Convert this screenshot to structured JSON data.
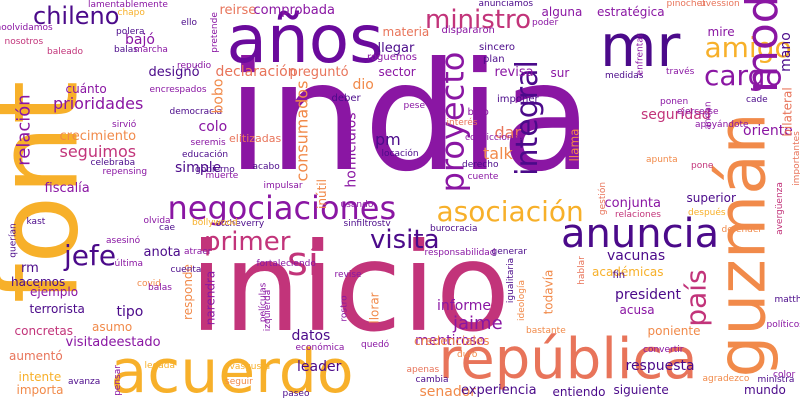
{
  "colors": {
    "background": "#ffffff",
    "purple": "#6a0a9c",
    "dark_purple": "#4b0a8a",
    "violet": "#8a16a3",
    "magenta": "#c2347a",
    "pink": "#d6507a",
    "coral": "#e8745a",
    "orange": "#f18a4a",
    "amber": "#f7b02a",
    "yellow": "#f9c52c"
  },
  "words": [
    {
      "text": "india"
    },
    {
      "text": "inicio"
    },
    {
      "text": "años"
    },
    {
      "text": "font"
    },
    {
      "text": "guzmán"
    },
    {
      "text": "acuerdo"
    },
    {
      "text": "república"
    },
    {
      "text": "mr"
    },
    {
      "text": "anuncia"
    },
    {
      "text": "negociaciones"
    },
    {
      "text": "asociación"
    },
    {
      "text": "proyecto"
    },
    {
      "text": "integral"
    },
    {
      "text": "ministro"
    },
    {
      "text": "chileno"
    },
    {
      "text": "amigo"
    },
    {
      "text": "modi"
    },
    {
      "text": "cargo"
    },
    {
      "text": "visita"
    },
    {
      "text": "primer"
    },
    {
      "text": "jefe"
    },
    {
      "text": "sí"
    },
    {
      "text": "país"
    },
    {
      "text": "relación"
    },
    {
      "text": "prioridades"
    },
    {
      "text": "seguimos"
    },
    {
      "text": "materia"
    },
    {
      "text": "alguna"
    },
    {
      "text": "estratégica"
    },
    {
      "text": "mire"
    },
    {
      "text": "mano"
    },
    {
      "text": "bajó"
    },
    {
      "text": "reirse"
    },
    {
      "text": "comprobada"
    },
    {
      "text": "declaración"
    },
    {
      "text": "preguntó"
    },
    {
      "text": "llegar"
    },
    {
      "text": "roguemos"
    },
    {
      "text": "revisa"
    },
    {
      "text": "sur"
    },
    {
      "text": "designó"
    },
    {
      "text": "dio"
    },
    {
      "text": "sector"
    },
    {
      "text": "cuánto"
    },
    {
      "text": "crecimiento"
    },
    {
      "text": "colo"
    },
    {
      "text": "consumados"
    },
    {
      "text": "pm"
    },
    {
      "text": "dar"
    },
    {
      "text": "talk"
    },
    {
      "text": "llama"
    },
    {
      "text": "seguridad"
    },
    {
      "text": "oriente"
    },
    {
      "text": "bilateral"
    },
    {
      "text": "fiscalía"
    },
    {
      "text": "simple"
    },
    {
      "text": "homicidios"
    },
    {
      "text": "inútil"
    },
    {
      "text": "conjunta"
    },
    {
      "text": "superior"
    },
    {
      "text": "vacunas"
    },
    {
      "text": "president"
    },
    {
      "text": "acusa"
    },
    {
      "text": "jaime"
    },
    {
      "text": "informe"
    },
    {
      "text": "mentiroso"
    },
    {
      "text": "datos"
    },
    {
      "text": "leader"
    },
    {
      "text": "credenciales"
    },
    {
      "text": "respuesta"
    },
    {
      "text": "poniente"
    },
    {
      "text": "rm"
    },
    {
      "text": "tipo"
    },
    {
      "text": "anota"
    },
    {
      "text": "narendra"
    },
    {
      "text": "responde"
    },
    {
      "text": "llorar"
    },
    {
      "text": "todavía"
    },
    {
      "text": "senador"
    },
    {
      "text": "experiencia"
    },
    {
      "text": "entiendo"
    },
    {
      "text": "siguiente"
    },
    {
      "text": "mundo"
    },
    {
      "text": "visitadeestado"
    },
    {
      "text": "aumentó"
    },
    {
      "text": "importa"
    },
    {
      "text": "intente"
    },
    {
      "text": "ejemplo"
    },
    {
      "text": "terrorista"
    },
    {
      "text": "concretas"
    },
    {
      "text": "hacemos"
    },
    {
      "text": "asumo"
    },
    {
      "text": "académicas"
    },
    {
      "text": "fin"
    },
    {
      "text": "plan"
    },
    {
      "text": "sincero"
    },
    {
      "text": "imponer"
    },
    {
      "text": "deber"
    },
    {
      "text": "bajo"
    },
    {
      "text": "interés"
    },
    {
      "text": "dispararon"
    },
    {
      "text": "anunciamos"
    },
    {
      "text": "poder"
    },
    {
      "text": "convicciones"
    },
    {
      "text": "democracia"
    },
    {
      "text": "educación"
    },
    {
      "text": "seremis"
    },
    {
      "text": "derecho"
    },
    {
      "text": "cuente"
    },
    {
      "text": "locación"
    },
    {
      "text": "impulsar"
    },
    {
      "text": "muerte"
    },
    {
      "text": "acabo"
    },
    {
      "text": "usando"
    },
    {
      "text": "sinfiltrostv"
    },
    {
      "text": "etcheverry"
    },
    {
      "text": "olvida"
    },
    {
      "text": "asesinó"
    },
    {
      "text": "última"
    },
    {
      "text": "fortaleciendo"
    },
    {
      "text": "responsabilidad"
    },
    {
      "text": "revise"
    },
    {
      "text": "quedó"
    },
    {
      "text": "gestión"
    },
    {
      "text": "apunta"
    },
    {
      "text": "ejercerse"
    },
    {
      "text": "través"
    },
    {
      "text": "medidas"
    },
    {
      "text": "enfrentar"
    },
    {
      "text": "celebraba"
    },
    {
      "text": "polera"
    },
    {
      "text": "balas"
    },
    {
      "text": "baleado"
    },
    {
      "text": "ello"
    },
    {
      "text": "chapo"
    },
    {
      "text": "avergüenza"
    },
    {
      "text": "defender"
    },
    {
      "text": "después"
    },
    {
      "text": "relaciones"
    },
    {
      "text": "ministra"
    },
    {
      "text": "agradezco"
    },
    {
      "text": "convertir"
    },
    {
      "text": "económica"
    },
    {
      "text": "películas"
    },
    {
      "text": "izquierda"
    },
    {
      "text": "rostro"
    },
    {
      "text": "igualitaria"
    },
    {
      "text": "hablar"
    },
    {
      "text": "ideología"
    },
    {
      "text": "cuenta"
    },
    {
      "text": "pensar"
    },
    {
      "text": "seguir"
    },
    {
      "text": "paseo"
    },
    {
      "text": "pone"
    },
    {
      "text": "importantes"
    },
    {
      "text": "ponen"
    },
    {
      "text": "lamentablemente"
    },
    {
      "text": "noolvidamos"
    },
    {
      "text": "nosotros"
    },
    {
      "text": "pretende"
    },
    {
      "text": "encrespados"
    },
    {
      "text": "marcha"
    },
    {
      "text": "repudio"
    },
    {
      "text": "sirvió"
    },
    {
      "text": "repensing"
    },
    {
      "text": "gobierno"
    },
    {
      "text": "bollywood"
    },
    {
      "text": "querían"
    },
    {
      "text": "kast"
    },
    {
      "text": "covid"
    },
    {
      "text": "cae"
    },
    {
      "text": "atraer"
    },
    {
      "text": "balas"
    },
    {
      "text": "generar"
    },
    {
      "text": "bastante"
    },
    {
      "text": "matthei"
    },
    {
      "text": "políticos"
    },
    {
      "text": "color"
    },
    {
      "text": "cade"
    },
    {
      "text": "andan"
    },
    {
      "text": "apoyándote"
    },
    {
      "text": "pinochet"
    },
    {
      "text": "uvession"
    },
    {
      "text": "burocracia"
    },
    {
      "text": "avanza"
    },
    {
      "text": "legada"
    },
    {
      "text": "vasgusta"
    },
    {
      "text": "apenas"
    },
    {
      "text": "duro"
    },
    {
      "text": "bobo"
    },
    {
      "text": "pese"
    },
    {
      "text": "cambia"
    },
    {
      "text": "elitizadas"
    }
  ]
}
